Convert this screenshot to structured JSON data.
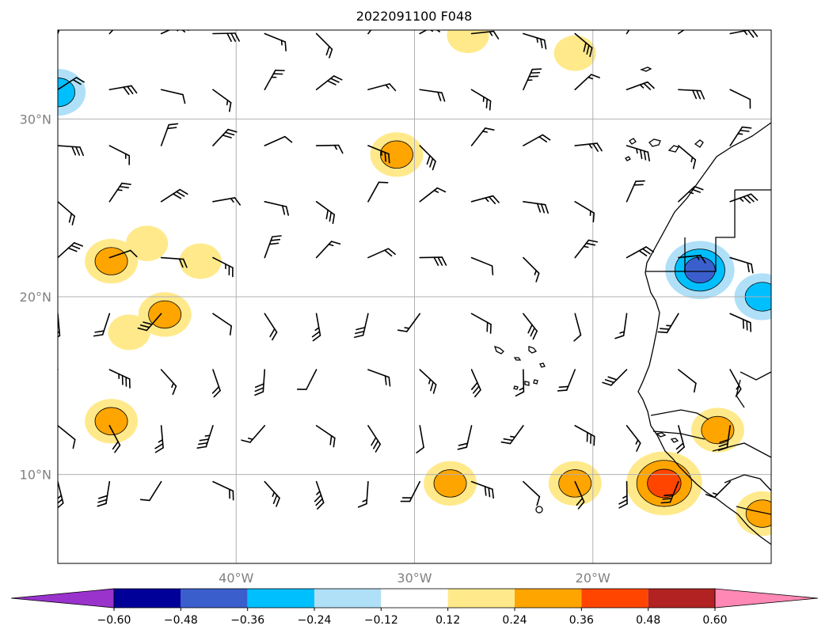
{
  "chart_data": {
    "type": "heatmap",
    "title": "2022091100 F048",
    "map_extent": {
      "lon": [
        -50,
        -10
      ],
      "lat": [
        5,
        35
      ]
    },
    "grid": true,
    "x_ticks": [
      {
        "value": -40,
        "label": "40°W"
      },
      {
        "value": -30,
        "label": "30°W"
      },
      {
        "value": -20,
        "label": "20°W"
      }
    ],
    "y_ticks": [
      {
        "value": 30,
        "label": "30°N"
      },
      {
        "value": 20,
        "label": "20°N"
      },
      {
        "value": 10,
        "label": "10°N"
      }
    ],
    "colorbar": {
      "extend": "both",
      "boundaries": [
        -0.6,
        -0.48,
        -0.36,
        -0.24,
        -0.12,
        0.12,
        0.24,
        0.36,
        0.48,
        0.6
      ],
      "labels": [
        "−0.60",
        "−0.48",
        "−0.36",
        "−0.24",
        "−0.12",
        "0.12",
        "0.24",
        "0.36",
        "0.48",
        "0.60"
      ],
      "colors": [
        "#9933cc",
        "#000099",
        "#3a5fcd",
        "#00bfff",
        "#b0e0f8",
        "#ffffff",
        "#ffe98a",
        "#ffa500",
        "#ff4500",
        "#b22222",
        "#ff88b4"
      ]
    },
    "shaded_areas": [
      {
        "lon": -50,
        "lat": 31.5,
        "value": -0.3
      },
      {
        "lon": -47,
        "lat": 22,
        "value": 0.28
      },
      {
        "lon": -45,
        "lat": 23,
        "value": 0.2
      },
      {
        "lon": -42,
        "lat": 22,
        "value": 0.2
      },
      {
        "lon": -44,
        "lat": 19,
        "value": 0.28
      },
      {
        "lon": -46,
        "lat": 18,
        "value": 0.2
      },
      {
        "lon": -47,
        "lat": 13,
        "value": 0.28
      },
      {
        "lon": -31,
        "lat": 28,
        "value": 0.28
      },
      {
        "lon": -27,
        "lat": 34.7,
        "value": 0.2
      },
      {
        "lon": -21,
        "lat": 33.7,
        "value": 0.2
      },
      {
        "lon": -28,
        "lat": 9.5,
        "value": 0.28
      },
      {
        "lon": -21,
        "lat": 9.5,
        "value": 0.28
      },
      {
        "lon": -16,
        "lat": 9.5,
        "value": 0.45
      },
      {
        "lon": -13,
        "lat": 12.5,
        "value": 0.28
      },
      {
        "lon": -10.5,
        "lat": 7.8,
        "value": 0.28
      },
      {
        "lon": -14,
        "lat": 21.5,
        "value": -0.4
      },
      {
        "lon": -10.5,
        "lat": 20,
        "value": -0.3
      }
    ],
    "wind_barbs": [
      {
        "lon": -50,
        "lat": 34.8,
        "u": -5,
        "v": 0
      }
    ]
  }
}
